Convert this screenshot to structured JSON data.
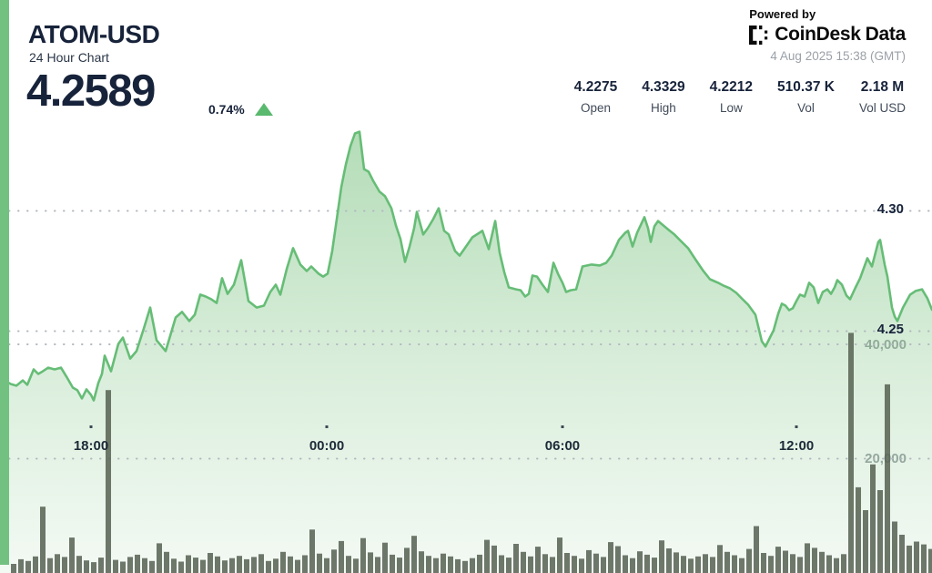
{
  "widget": {
    "symbol": "ATOM-USD",
    "subtitle": "24 Hour Chart",
    "price": "4.2589",
    "change_percent": "0.74%",
    "change_direction": "up",
    "powered_by": "Powered by",
    "brand_name_1": "CoinDesk",
    "brand_name_2": "Data",
    "timestamp": "4 Aug 2025 15:38 (GMT)"
  },
  "stats": [
    {
      "value": "4.2275",
      "label": "Open"
    },
    {
      "value": "4.3329",
      "label": "High"
    },
    {
      "value": "4.2212",
      "label": "Low"
    },
    {
      "value": "510.37 K",
      "label": "Vol"
    },
    {
      "value": "2.18 M",
      "label": "Vol USD"
    }
  ],
  "colors": {
    "accent_green": "#72c181",
    "line_green": "#66bd76",
    "fill_green": "#7cc382",
    "volume_bar": "#566051",
    "grid_dot": "#b2b8bf",
    "tick_mark": "#3c4753",
    "up_arrow": "#59b96e",
    "text_dark": "#17233a",
    "text_gray": "#9ba1a8"
  },
  "chart_data": {
    "type": "area",
    "title": "ATOM-USD 24 Hour Chart",
    "x_range_hours": 24,
    "open": 4.2275,
    "high": 4.3329,
    "low": 4.2212,
    "close": 4.2589,
    "volume": "510.37 K",
    "volume_usd": "2.18 M",
    "legend": "none",
    "grid": "dotted",
    "x_ticks": [
      {
        "t": 0.0977,
        "label": "18:00"
      },
      {
        "t": 0.3506,
        "label": "00:00"
      },
      {
        "t": 0.6035,
        "label": "06:00"
      },
      {
        "t": 0.8545,
        "label": "12:00"
      }
    ],
    "price_gridlines": [
      {
        "value": 4.3,
        "label": "4.30"
      },
      {
        "value": 4.25,
        "label": "4.25"
      }
    ],
    "volume_gridlines": [
      {
        "value": 40000,
        "label": "40,000"
      },
      {
        "value": 20000,
        "label": "20,000"
      }
    ],
    "price_series": [
      [
        0,
        4.2288
      ],
      [
        0.0059,
        4.2292
      ],
      [
        0.0117,
        4.228
      ],
      [
        0.0176,
        4.2273
      ],
      [
        0.0244,
        4.2295
      ],
      [
        0.0293,
        4.2277
      ],
      [
        0.0361,
        4.2341
      ],
      [
        0.041,
        4.2322
      ],
      [
        0.0459,
        4.2333
      ],
      [
        0.0518,
        4.2348
      ],
      [
        0.0586,
        4.2341
      ],
      [
        0.0654,
        4.2348
      ],
      [
        0.0713,
        4.2311
      ],
      [
        0.0781,
        4.2265
      ],
      [
        0.083,
        4.2254
      ],
      [
        0.0879,
        4.222
      ],
      [
        0.0928,
        4.2258
      ],
      [
        0.0977,
        4.2235
      ],
      [
        0.1006,
        4.2212
      ],
      [
        0.1055,
        4.2284
      ],
      [
        0.1094,
        4.2322
      ],
      [
        0.1123,
        4.2398
      ],
      [
        0.1191,
        4.2333
      ],
      [
        0.127,
        4.2447
      ],
      [
        0.1318,
        4.2473
      ],
      [
        0.1396,
        4.2386
      ],
      [
        0.1465,
        4.2417
      ],
      [
        0.1543,
        4.2511
      ],
      [
        0.1611,
        4.2598
      ],
      [
        0.168,
        4.2462
      ],
      [
        0.1777,
        4.2417
      ],
      [
        0.1885,
        4.2557
      ],
      [
        0.1953,
        4.258
      ],
      [
        0.2031,
        4.2542
      ],
      [
        0.209,
        4.2568
      ],
      [
        0.2148,
        4.2652
      ],
      [
        0.2207,
        4.2644
      ],
      [
        0.2266,
        4.2633
      ],
      [
        0.2324,
        4.2617
      ],
      [
        0.2383,
        4.272
      ],
      [
        0.2441,
        4.2655
      ],
      [
        0.251,
        4.2693
      ],
      [
        0.2588,
        4.2795
      ],
      [
        0.2666,
        4.2625
      ],
      [
        0.2754,
        4.2598
      ],
      [
        0.2832,
        4.2606
      ],
      [
        0.29,
        4.2663
      ],
      [
        0.2959,
        4.2693
      ],
      [
        0.3008,
        4.2652
      ],
      [
        0.3076,
        4.2758
      ],
      [
        0.3145,
        4.2845
      ],
      [
        0.3223,
        4.2777
      ],
      [
        0.3291,
        4.275
      ],
      [
        0.334,
        4.2769
      ],
      [
        0.3418,
        4.2739
      ],
      [
        0.3467,
        4.2727
      ],
      [
        0.3516,
        4.2739
      ],
      [
        0.3564,
        4.2833
      ],
      [
        0.3613,
        4.2966
      ],
      [
        0.3662,
        4.3099
      ],
      [
        0.3711,
        4.3193
      ],
      [
        0.376,
        4.3269
      ],
      [
        0.3809,
        4.3322
      ],
      [
        0.3857,
        4.3329
      ],
      [
        0.3906,
        4.3174
      ],
      [
        0.3955,
        4.3163
      ],
      [
        0.4004,
        4.3125
      ],
      [
        0.4072,
        4.308
      ],
      [
        0.4131,
        4.3061
      ],
      [
        0.4199,
        4.3011
      ],
      [
        0.4248,
        4.2939
      ],
      [
        0.4297,
        4.2883
      ],
      [
        0.4346,
        4.2788
      ],
      [
        0.4395,
        4.2852
      ],
      [
        0.4443,
        4.2928
      ],
      [
        0.4473,
        4.2996
      ],
      [
        0.4541,
        4.2902
      ],
      [
        0.459,
        4.2928
      ],
      [
        0.4648,
        4.2966
      ],
      [
        0.4707,
        4.3011
      ],
      [
        0.4766,
        4.2917
      ],
      [
        0.4814,
        4.2902
      ],
      [
        0.4883,
        4.2833
      ],
      [
        0.4932,
        4.2814
      ],
      [
        0.5,
        4.2852
      ],
      [
        0.5068,
        4.289
      ],
      [
        0.5176,
        4.2917
      ],
      [
        0.5244,
        4.2841
      ],
      [
        0.5313,
        4.2958
      ],
      [
        0.5361,
        4.2826
      ],
      [
        0.541,
        4.2746
      ],
      [
        0.5459,
        4.2682
      ],
      [
        0.5537,
        4.2674
      ],
      [
        0.5586,
        4.267
      ],
      [
        0.5635,
        4.2644
      ],
      [
        0.5674,
        4.2655
      ],
      [
        0.5713,
        4.2731
      ],
      [
        0.5762,
        4.2727
      ],
      [
        0.582,
        4.2693
      ],
      [
        0.5879,
        4.2663
      ],
      [
        0.5938,
        4.2784
      ],
      [
        0.5986,
        4.2739
      ],
      [
        0.6035,
        4.2701
      ],
      [
        0.6074,
        4.2663
      ],
      [
        0.6123,
        4.267
      ],
      [
        0.6182,
        4.2674
      ],
      [
        0.625,
        4.2769
      ],
      [
        0.6348,
        4.2777
      ],
      [
        0.6436,
        4.2773
      ],
      [
        0.6504,
        4.2784
      ],
      [
        0.6563,
        4.2814
      ],
      [
        0.6641,
        4.2879
      ],
      [
        0.6709,
        4.2909
      ],
      [
        0.6738,
        4.2917
      ],
      [
        0.6787,
        4.2852
      ],
      [
        0.6836,
        4.2909
      ],
      [
        0.6914,
        4.2974
      ],
      [
        0.6953,
        4.2928
      ],
      [
        0.6982,
        4.2871
      ],
      [
        0.7021,
        4.2936
      ],
      [
        0.7061,
        4.2958
      ],
      [
        0.7119,
        4.2939
      ],
      [
        0.7178,
        4.292
      ],
      [
        0.7236,
        4.2902
      ],
      [
        0.7305,
        4.2875
      ],
      [
        0.7383,
        4.2845
      ],
      [
        0.7461,
        4.2799
      ],
      [
        0.7539,
        4.2754
      ],
      [
        0.7617,
        4.2716
      ],
      [
        0.7705,
        4.2701
      ],
      [
        0.7764,
        4.2689
      ],
      [
        0.7832,
        4.2678
      ],
      [
        0.79,
        4.2659
      ],
      [
        0.7959,
        4.2636
      ],
      [
        0.8027,
        4.261
      ],
      [
        0.8105,
        4.2568
      ],
      [
        0.8174,
        4.2458
      ],
      [
        0.8213,
        4.2436
      ],
      [
        0.8252,
        4.2466
      ],
      [
        0.8301,
        4.2504
      ],
      [
        0.835,
        4.2572
      ],
      [
        0.8389,
        4.2614
      ],
      [
        0.8428,
        4.2606
      ],
      [
        0.8467,
        4.2587
      ],
      [
        0.8506,
        4.2595
      ],
      [
        0.8545,
        4.2625
      ],
      [
        0.8584,
        4.2652
      ],
      [
        0.8633,
        4.2644
      ],
      [
        0.8682,
        4.2701
      ],
      [
        0.873,
        4.2682
      ],
      [
        0.8779,
        4.2617
      ],
      [
        0.8828,
        4.2663
      ],
      [
        0.8877,
        4.2674
      ],
      [
        0.8916,
        4.2655
      ],
      [
        0.8955,
        4.2682
      ],
      [
        0.8984,
        4.2712
      ],
      [
        0.9033,
        4.2693
      ],
      [
        0.9082,
        4.2648
      ],
      [
        0.9121,
        4.2633
      ],
      [
        0.918,
        4.2682
      ],
      [
        0.9229,
        4.272
      ],
      [
        0.9307,
        4.2803
      ],
      [
        0.9355,
        4.2769
      ],
      [
        0.9424,
        4.2871
      ],
      [
        0.9443,
        4.2879
      ],
      [
        0.9492,
        4.2777
      ],
      [
        0.9521,
        4.2727
      ],
      [
        0.957,
        4.2598
      ],
      [
        0.96,
        4.2561
      ],
      [
        0.9629,
        4.2542
      ],
      [
        0.9688,
        4.2598
      ],
      [
        0.9766,
        4.2652
      ],
      [
        0.9824,
        4.2667
      ],
      [
        0.9893,
        4.2674
      ],
      [
        0.9951,
        4.2636
      ],
      [
        1,
        4.2589
      ]
    ],
    "volume_series": [
      1600,
      2400,
      2100,
      2900,
      11600,
      2600,
      3300,
      2800,
      6200,
      3000,
      2200,
      1900,
      2700,
      32000,
      2300,
      2000,
      2800,
      3200,
      2600,
      2100,
      5200,
      3700,
      2500,
      2000,
      3100,
      2700,
      2300,
      3500,
      2900,
      2200,
      2600,
      3000,
      2400,
      2800,
      3300,
      2100,
      2500,
      3700,
      2900,
      2300,
      3100,
      7600,
      3400,
      2600,
      4100,
      5600,
      3000,
      2500,
      6100,
      3600,
      2800,
      5300,
      3200,
      2700,
      4400,
      6500,
      3800,
      3000,
      2600,
      3400,
      2900,
      2400,
      2100,
      2600,
      3200,
      5800,
      4800,
      3100,
      2700,
      5100,
      3700,
      2900,
      4600,
      3300,
      2800,
      6200,
      3500,
      3000,
      2500,
      4000,
      3400,
      2800,
      5400,
      4700,
      3100,
      2600,
      3800,
      3200,
      2700,
      5700,
      4300,
      3600,
      3000,
      2500,
      2900,
      3300,
      2800,
      4900,
      3700,
      3100,
      2600,
      4200,
      8200,
      3500,
      3000,
      4600,
      3900,
      3300,
      2800,
      5200,
      4400,
      3700,
      3100,
      2600,
      3300,
      42000,
      15000,
      11000,
      19000,
      14500,
      33000,
      9000,
      6700,
      4800,
      5500,
      5000,
      4200
    ]
  }
}
